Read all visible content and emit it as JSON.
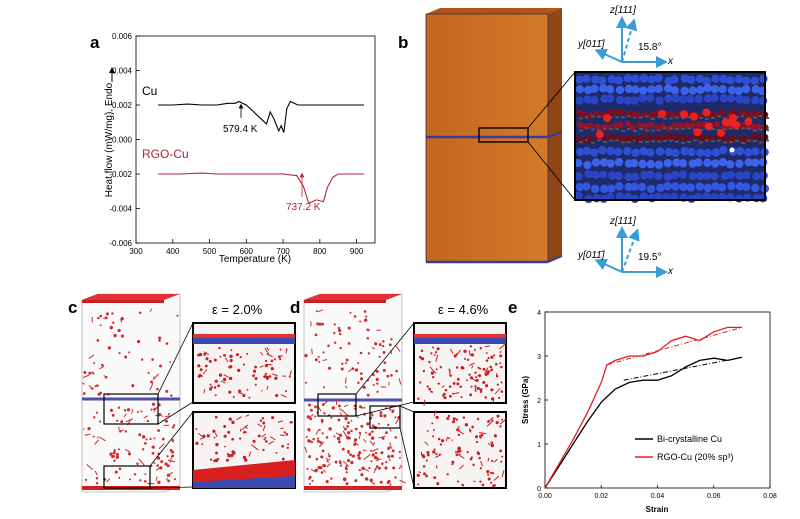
{
  "panels": {
    "a": "a",
    "b": "b",
    "c": "c",
    "d": "d",
    "e": "e"
  },
  "chart_data": [
    {
      "type": "line",
      "panel": "a",
      "xlabel": "Temperature (K)",
      "ylabel": "Heat flow (mW/mg), Endo",
      "xlim": [
        300,
        950
      ],
      "ylim": [
        -0.006,
        0.006
      ],
      "xticks": [
        "300",
        "400",
        "500",
        "600",
        "700",
        "800",
        "900"
      ],
      "yticks": [
        "0.006",
        "0.004",
        "0.002",
        "0.000",
        "-0.002",
        "-0.004",
        "-0.006"
      ],
      "series": [
        {
          "name": "Cu",
          "color": "#000000",
          "points": [
            [
              360,
              0.002
            ],
            [
              400,
              0.002
            ],
            [
              440,
              0.00205
            ],
            [
              480,
              0.002
            ],
            [
              520,
              0.002
            ],
            [
              550,
              0.0021
            ],
            [
              570,
              0.0021
            ],
            [
              579.4,
              0.0022
            ],
            [
              600,
              0.002
            ],
            [
              620,
              0.0016
            ],
            [
              640,
              0.0012
            ],
            [
              655,
              0.0009
            ],
            [
              665,
              0.0016
            ],
            [
              675,
              0.0012
            ],
            [
              688,
              0.0005
            ],
            [
              695,
              0.0008
            ],
            [
              702,
              0.0004
            ],
            [
              710,
              0.0018
            ],
            [
              720,
              0.0022
            ],
            [
              740,
              0.002
            ],
            [
              780,
              0.002
            ],
            [
              840,
              0.002
            ],
            [
              920,
              0.002
            ]
          ]
        },
        {
          "name": "RGO-Cu",
          "color": "#b0243a",
          "points": [
            [
              360,
              -0.002
            ],
            [
              420,
              -0.002
            ],
            [
              480,
              -0.00195
            ],
            [
              520,
              -0.002
            ],
            [
              560,
              -0.002
            ],
            [
              600,
              -0.002
            ],
            [
              650,
              -0.002
            ],
            [
              700,
              -0.002
            ],
            [
              737.2,
              -0.0021
            ],
            [
              755,
              -0.0027
            ],
            [
              770,
              -0.0037
            ],
            [
              790,
              -0.0035
            ],
            [
              810,
              -0.0036
            ],
            [
              820,
              -0.0028
            ],
            [
              835,
              -0.0022
            ],
            [
              850,
              -0.002
            ],
            [
              900,
              -0.002
            ],
            [
              920,
              -0.002
            ]
          ]
        }
      ],
      "annotations": [
        {
          "text": "579.4 K",
          "x": 579.4,
          "series": "Cu"
        },
        {
          "text": "737.2 K",
          "x": 737.2,
          "series": "RGO-Cu"
        }
      ]
    },
    {
      "type": "line",
      "panel": "e",
      "xlabel": "Strain",
      "ylabel": "Stress (GPa)",
      "xlim": [
        0,
        0.08
      ],
      "ylim": [
        0,
        4
      ],
      "xticks": [
        "0.00",
        "0.02",
        "0.04",
        "0.06",
        "0.08"
      ],
      "yticks": [
        "0",
        "1",
        "2",
        "3",
        "4"
      ],
      "series": [
        {
          "name": "Bi-crystalline Cu",
          "color": "#000000",
          "points": [
            [
              0,
              0
            ],
            [
              0.005,
              0.5
            ],
            [
              0.01,
              1.0
            ],
            [
              0.015,
              1.5
            ],
            [
              0.02,
              1.95
            ],
            [
              0.025,
              2.25
            ],
            [
              0.03,
              2.4
            ],
            [
              0.035,
              2.45
            ],
            [
              0.04,
              2.45
            ],
            [
              0.045,
              2.55
            ],
            [
              0.05,
              2.75
            ],
            [
              0.055,
              2.9
            ],
            [
              0.06,
              2.95
            ],
            [
              0.065,
              2.9
            ],
            [
              0.07,
              2.97
            ]
          ]
        },
        {
          "name": "RGO-Cu (20% sp³)",
          "color": "#e02020",
          "points": [
            [
              0,
              0
            ],
            [
              0.005,
              0.55
            ],
            [
              0.01,
              1.1
            ],
            [
              0.015,
              1.7
            ],
            [
              0.02,
              2.4
            ],
            [
              0.022,
              2.8
            ],
            [
              0.025,
              2.9
            ],
            [
              0.03,
              3.0
            ],
            [
              0.035,
              3.0
            ],
            [
              0.04,
              3.1
            ],
            [
              0.045,
              3.35
            ],
            [
              0.05,
              3.45
            ],
            [
              0.055,
              3.35
            ],
            [
              0.06,
              3.55
            ],
            [
              0.065,
              3.65
            ],
            [
              0.07,
              3.65
            ]
          ]
        }
      ],
      "fits": [
        {
          "series": "Bi-crystalline Cu",
          "from": [
            0.028,
            2.45
          ],
          "to": [
            0.07,
            2.97
          ]
        },
        {
          "series": "RGO-Cu (20% sp³)",
          "from": [
            0.022,
            2.8
          ],
          "to": [
            0.07,
            3.65
          ]
        }
      ],
      "legend": "bottom-right"
    }
  ],
  "panel_b": {
    "axes_top": {
      "z": "z[111]",
      "y": "y[011̄]",
      "x": "x",
      "angle": "15.8°"
    },
    "axes_bottom": {
      "z": "z[111]",
      "y": "y[011̄]",
      "x": "x",
      "angle": "19.5°"
    }
  },
  "panel_c": {
    "strain": "ε = 2.0%"
  },
  "panel_d": {
    "strain": "ε = 4.6%"
  }
}
